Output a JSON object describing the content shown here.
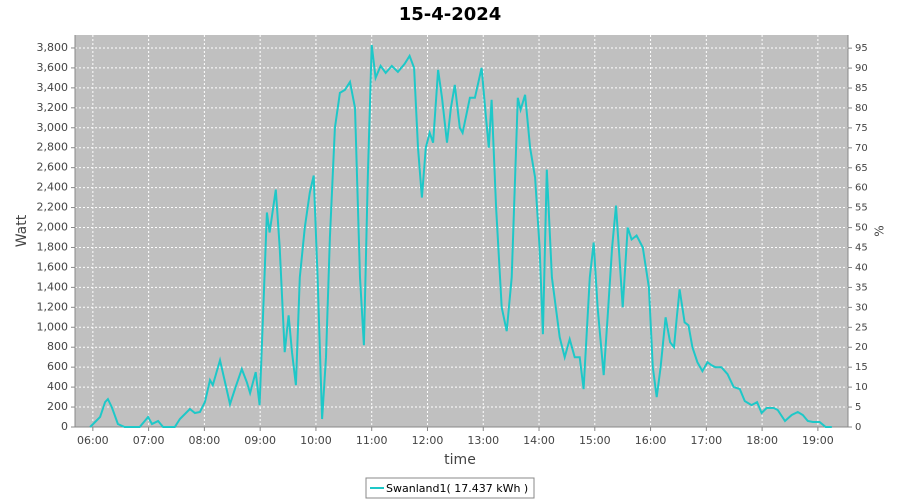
{
  "chart_data": {
    "type": "line",
    "title": "15-4-2024",
    "x_label": "time",
    "y_label": "Watt",
    "y2_label": "%",
    "grid": true,
    "legend": "bottom",
    "xlim": [
      5.68,
      19.54
    ],
    "xticks": [
      {
        "value": 6,
        "label": "06:00"
      },
      {
        "value": 7,
        "label": "07:00"
      },
      {
        "value": 8,
        "label": "08:00"
      },
      {
        "value": 9,
        "label": "09:00"
      },
      {
        "value": 10,
        "label": "10:00"
      },
      {
        "value": 11,
        "label": "11:00"
      },
      {
        "value": 12,
        "label": "12:00"
      },
      {
        "value": 13,
        "label": "13:00"
      },
      {
        "value": 14,
        "label": "14:00"
      },
      {
        "value": 15,
        "label": "15:00"
      },
      {
        "value": 16,
        "label": "16:00"
      },
      {
        "value": 17,
        "label": "17:00"
      },
      {
        "value": 18,
        "label": "18:00"
      },
      {
        "value": 19,
        "label": "19:00"
      }
    ],
    "ylim": [
      0,
      3930
    ],
    "yticks": [
      0,
      200,
      400,
      600,
      800,
      {
        "value": 1000,
        "label": "1,000"
      },
      {
        "value": 1200,
        "label": "1,200"
      },
      {
        "value": 1400,
        "label": "1,400"
      },
      {
        "value": 1600,
        "label": "1,600"
      },
      {
        "value": 1800,
        "label": "1,800"
      },
      {
        "value": 2000,
        "label": "2,000"
      },
      {
        "value": 2200,
        "label": "2,200"
      },
      {
        "value": 2400,
        "label": "2,400"
      },
      {
        "value": 2600,
        "label": "2,600"
      },
      {
        "value": 2800,
        "label": "2,800"
      },
      {
        "value": 3000,
        "label": "3,000"
      },
      {
        "value": 3200,
        "label": "3,200"
      },
      {
        "value": 3400,
        "label": "3,400"
      },
      {
        "value": 3600,
        "label": "3,600"
      },
      {
        "value": 3800,
        "label": "3,800"
      }
    ],
    "y2lim": [
      0,
      98.3
    ],
    "y2ticks": [
      0,
      5,
      10,
      15,
      20,
      25,
      30,
      35,
      40,
      45,
      50,
      55,
      60,
      65,
      70,
      75,
      80,
      85,
      90,
      95
    ],
    "x": [
      5.95,
      6.04,
      6.13,
      6.22,
      6.27,
      6.34,
      6.45,
      6.57,
      6.84,
      6.99,
      7.06,
      7.17,
      7.26,
      7.47,
      7.56,
      7.74,
      7.83,
      7.92,
      8.01,
      8.1,
      8.15,
      8.28,
      8.37,
      8.46,
      8.56,
      8.67,
      8.76,
      8.82,
      8.92,
      8.99,
      9.07,
      9.12,
      9.17,
      9.28,
      9.35,
      9.44,
      9.51,
      9.57,
      9.64,
      9.71,
      9.8,
      9.89,
      9.96,
      10.03,
      10.11,
      10.18,
      10.25,
      10.34,
      10.43,
      10.52,
      10.61,
      10.7,
      10.79,
      10.86,
      10.93,
      11.0,
      11.07,
      11.16,
      11.25,
      11.36,
      11.47,
      11.59,
      11.68,
      11.76,
      11.83,
      11.9,
      11.97,
      12.04,
      12.1,
      12.19,
      12.26,
      12.35,
      12.42,
      12.49,
      12.58,
      12.63,
      12.76,
      12.85,
      12.97,
      13.05,
      13.1,
      13.15,
      13.23,
      13.33,
      13.42,
      13.51,
      13.62,
      13.67,
      13.75,
      13.84,
      13.93,
      14.01,
      14.07,
      14.14,
      14.23,
      14.37,
      14.46,
      14.55,
      14.64,
      14.73,
      14.8,
      14.91,
      14.98,
      15.05,
      15.16,
      15.23,
      15.31,
      15.38,
      15.43,
      15.5,
      15.59,
      15.66,
      15.75,
      15.86,
      15.97,
      16.04,
      16.11,
      16.18,
      16.27,
      16.35,
      16.42,
      16.47,
      16.52,
      16.61,
      16.68,
      16.75,
      16.84,
      16.93,
      17.02,
      17.09,
      17.16,
      17.27,
      17.38,
      17.49,
      17.6,
      17.69,
      17.81,
      17.91,
      17.99,
      18.08,
      18.21,
      18.28,
      18.41,
      18.53,
      18.64,
      18.73,
      18.82,
      18.91,
      19.03,
      19.14,
      19.25
    ],
    "series": [
      {
        "name": "Swanland1( 17.437 kWh )",
        "color": "#1ec8c8",
        "values": [
          0,
          50,
          100,
          250,
          280,
          200,
          30,
          0,
          0,
          100,
          30,
          60,
          0,
          0,
          80,
          180,
          140,
          150,
          250,
          470,
          420,
          670,
          450,
          230,
          400,
          580,
          450,
          340,
          550,
          220,
          1400,
          2150,
          1950,
          2380,
          1800,
          750,
          1120,
          750,
          420,
          1500,
          2000,
          2350,
          2520,
          1500,
          80,
          700,
          1900,
          3000,
          3350,
          3380,
          3460,
          3200,
          1500,
          820,
          2500,
          3830,
          3500,
          3620,
          3550,
          3620,
          3560,
          3640,
          3720,
          3600,
          2800,
          2300,
          2800,
          2950,
          2850,
          3580,
          3300,
          2850,
          3200,
          3430,
          3000,
          2950,
          3300,
          3300,
          3600,
          3100,
          2800,
          3280,
          2200,
          1200,
          960,
          1500,
          3300,
          3180,
          3330,
          2800,
          2500,
          1800,
          930,
          2580,
          1500,
          900,
          700,
          880,
          700,
          700,
          380,
          1500,
          1850,
          1200,
          520,
          1100,
          1800,
          2220,
          1800,
          1200,
          2000,
          1880,
          1920,
          1800,
          1400,
          600,
          300,
          600,
          1100,
          850,
          800,
          1100,
          1380,
          1050,
          1020,
          800,
          650,
          560,
          650,
          620,
          600,
          600,
          530,
          400,
          380,
          260,
          220,
          250,
          140,
          190,
          190,
          170,
          60,
          120,
          150,
          120,
          60,
          50,
          50,
          0,
          0
        ]
      }
    ]
  }
}
